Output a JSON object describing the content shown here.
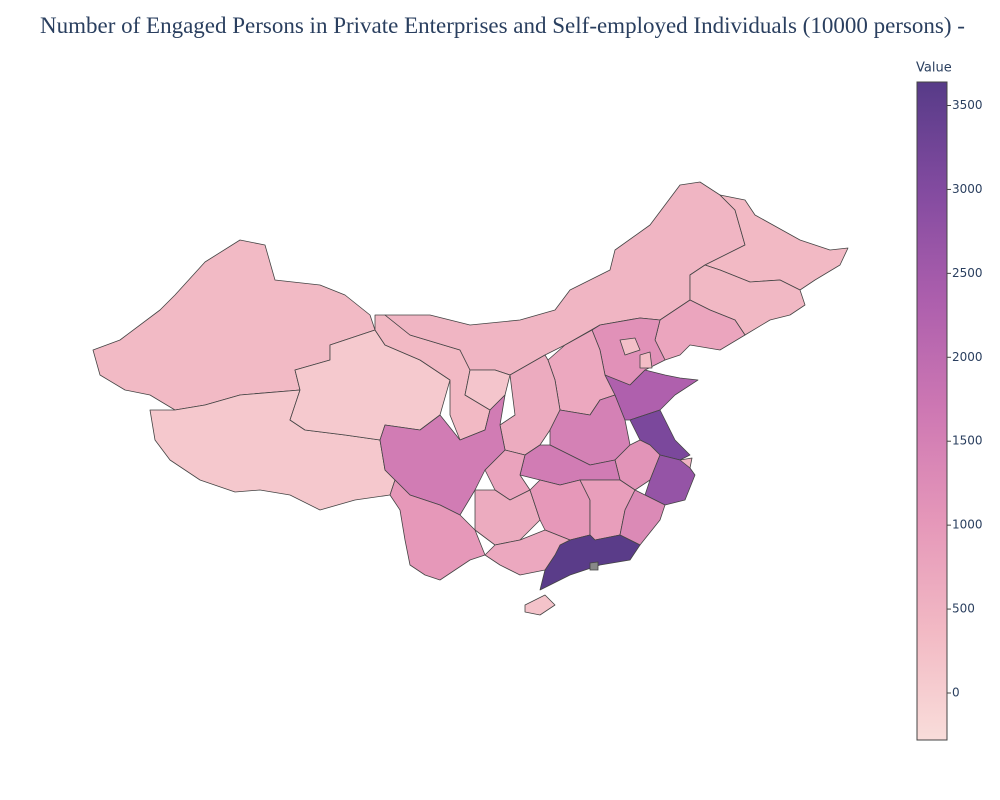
{
  "chart_data": {
    "type": "choropleth",
    "title": "Number of Engaged Persons in Private Enterprises and Self-employed Individuals (10000 persons) -",
    "colorbar_title": "Value",
    "colorscale": [
      "#f9ddda",
      "#f2b9c4",
      "#e597b9",
      "#ce78b3",
      "#ad5fad",
      "#834ba0",
      "#573b88"
    ],
    "clim": [
      -280,
      3640
    ],
    "cticks": [
      0,
      500,
      1000,
      1500,
      2000,
      2500,
      3000,
      3500
    ],
    "values": [
      350,
      100,
      80,
      380,
      450,
      380,
      400,
      750,
      1150,
      250,
      300,
      700,
      650,
      150,
      1500,
      2300,
      3100,
      500,
      1100,
      2700,
      1600,
      800,
      1600,
      650,
      1000,
      900,
      1300,
      3600,
      700,
      1000,
      200
    ]
  }
}
